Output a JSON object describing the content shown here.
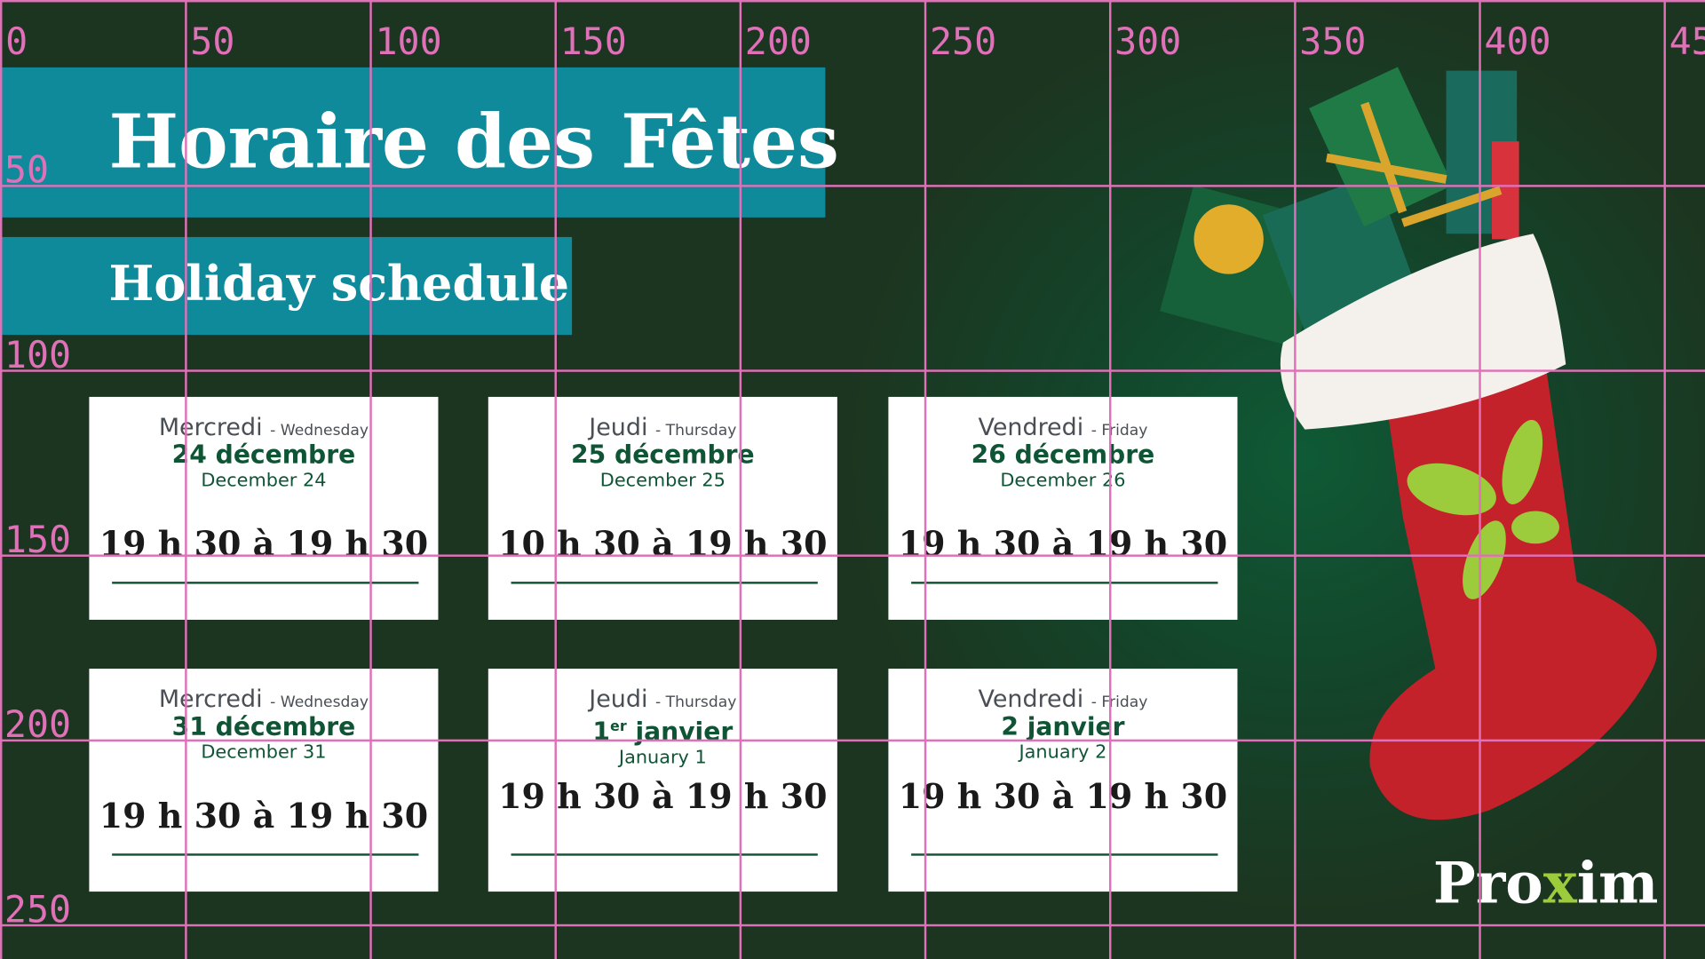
{
  "title": "Horaire des Fêtes",
  "subtitle": "Holiday schedule",
  "cards": [
    {
      "day_fr": "Mercredi",
      "day_en": "- Wednesday",
      "date_fr": "24 décembre",
      "date_en": "December 24",
      "hours": "19 h 30 à 19 h 30"
    },
    {
      "day_fr": "Jeudi",
      "day_en": "- Thursday",
      "date_fr": "25 décembre",
      "date_en": "December 25",
      "hours": "10 h 30 à 19 h 30"
    },
    {
      "day_fr": "Vendredi",
      "day_en": "- Friday",
      "date_fr": "26 décembre",
      "date_en": "December 26",
      "hours": "19 h 30 à 19 h 30"
    },
    {
      "day_fr": "Mercredi",
      "day_en": "- Wednesday",
      "date_fr": "31 décembre",
      "date_en": "December 31",
      "hours": "19 h 30 à 19 h 30"
    },
    {
      "day_fr": "Jeudi",
      "day_en": "- Thursday",
      "date_fr": "1",
      "date_fr_sup": "er",
      "date_fr_rest": " janvier",
      "date_en": "January 1",
      "hours": "19 h 30 à 19 h 30"
    },
    {
      "day_fr": "Vendredi",
      "day_en": "- Friday",
      "date_fr": "2 janvier",
      "date_en": "January 2",
      "hours": "19 h 30 à 19 h 30"
    }
  ],
  "logo": {
    "pre": "Pro",
    "x": "x",
    "post": "im"
  },
  "grid": {
    "x_labels": [
      "0",
      "50",
      "100",
      "150",
      "200",
      "250",
      "300",
      "350",
      "400",
      "45"
    ],
    "y_labels": [
      "50",
      "100",
      "150",
      "200",
      "250"
    ],
    "color": "#e070b8"
  },
  "colors": {
    "background": "#1c3520",
    "band": "#0e8a9a",
    "accent_green": "#0f5535",
    "stocking": "#c4222b"
  }
}
